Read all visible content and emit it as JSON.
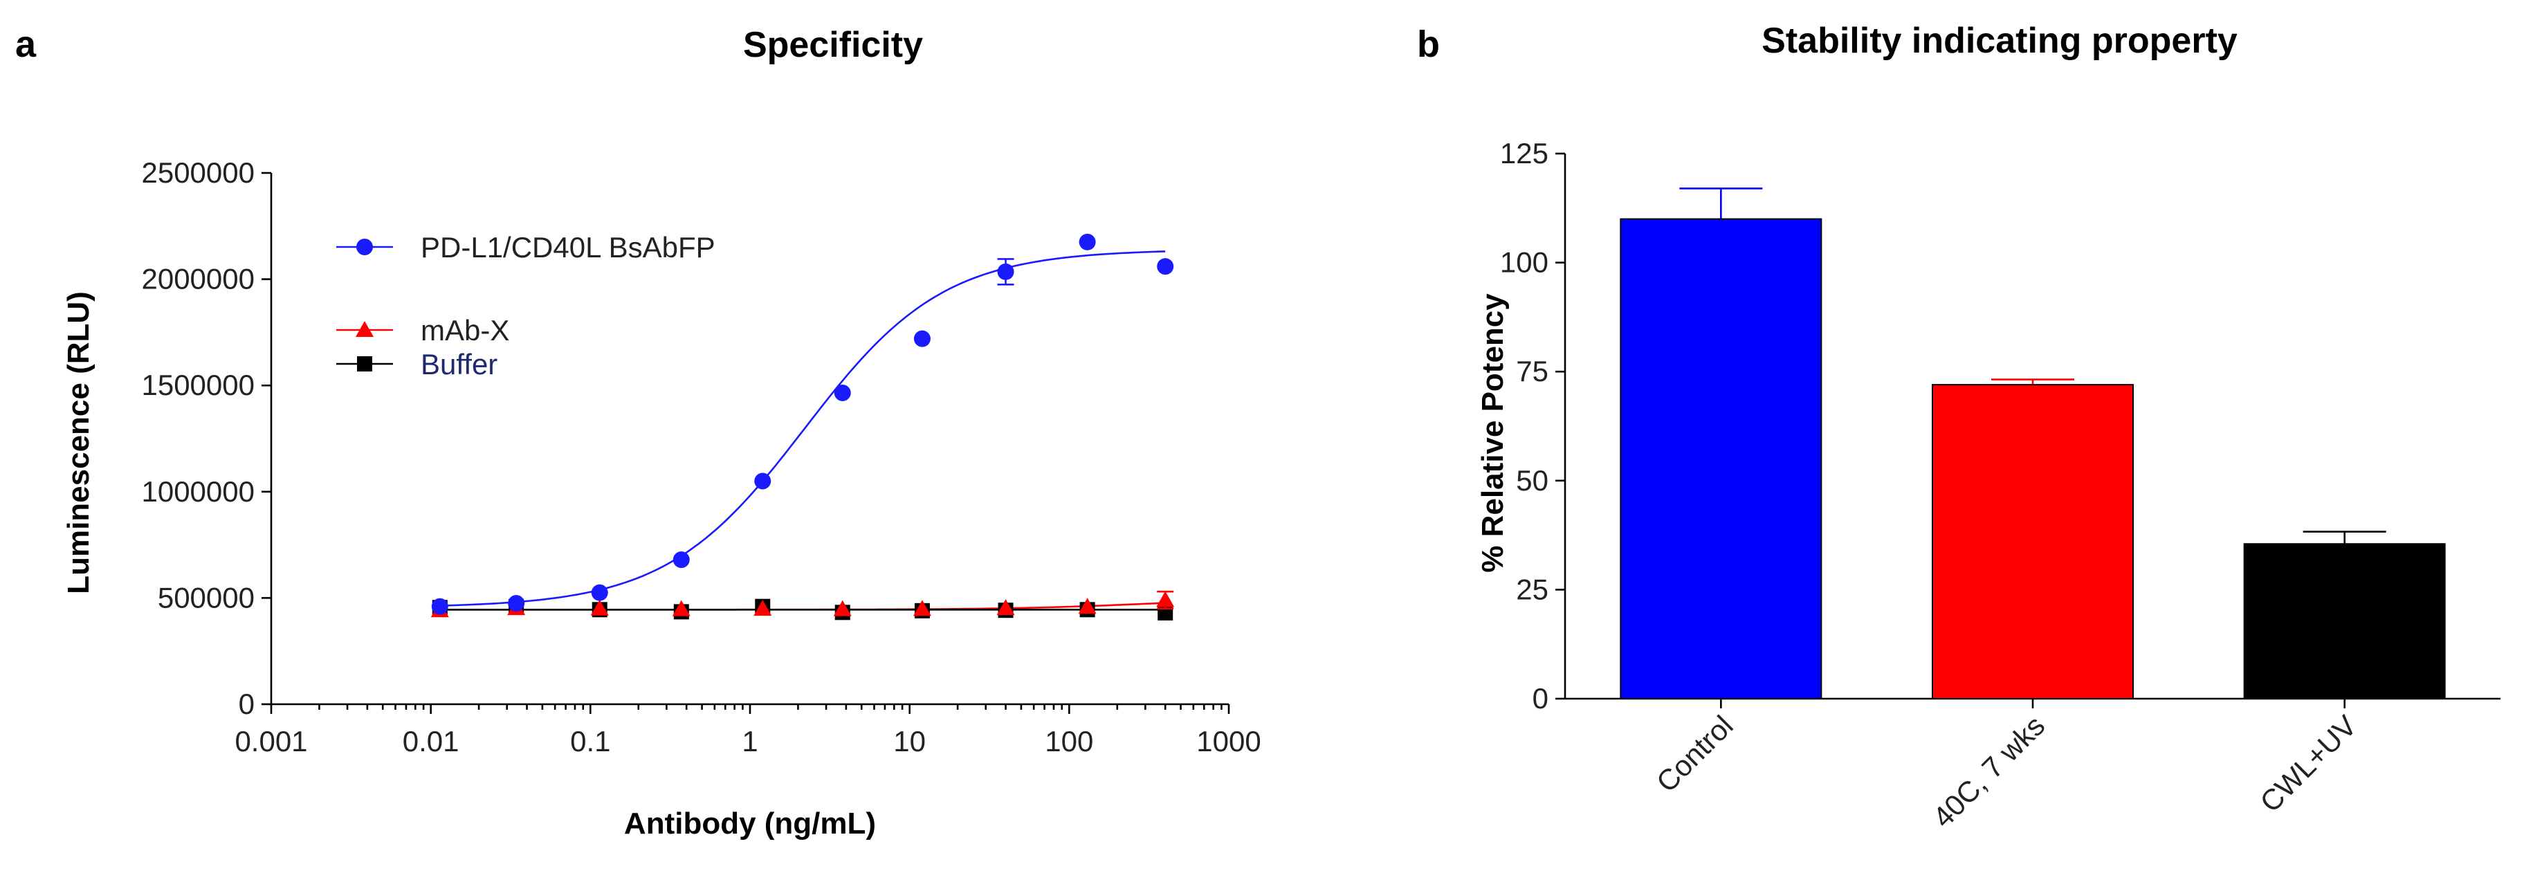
{
  "panels": {
    "a": {
      "letter": "a",
      "title": "Specificity"
    },
    "b": {
      "letter": "b",
      "title": "Stability indicating property"
    }
  },
  "chart_data": [
    {
      "type": "scatter",
      "title": "Specificity",
      "xlabel": "Antibody (ng/mL)",
      "ylabel": "Luminescence (RLU)",
      "x_scale": "log",
      "xlim": [
        0.001,
        1000
      ],
      "ylim": [
        0,
        2500000
      ],
      "x_ticks": [
        {
          "value": 0.001,
          "label": "0.001"
        },
        {
          "value": 0.01,
          "label": "0.01"
        },
        {
          "value": 0.1,
          "label": "0.1"
        },
        {
          "value": 1,
          "label": "1"
        },
        {
          "value": 10,
          "label": "10"
        },
        {
          "value": 100,
          "label": "100"
        },
        {
          "value": 1000,
          "label": "1000"
        }
      ],
      "y_ticks": [
        {
          "value": 0,
          "label": "0"
        },
        {
          "value": 500000,
          "label": "500000"
        },
        {
          "value": 1000000,
          "label": "1000000"
        },
        {
          "value": 1500000,
          "label": "1500000"
        },
        {
          "value": 2000000,
          "label": "2000000"
        },
        {
          "value": 2500000,
          "label": "2500000"
        }
      ],
      "grid": false,
      "legend_position": "top-left",
      "x": [
        0.0114,
        0.0343,
        0.1143,
        0.3714,
        1.2,
        3.8,
        12,
        40,
        130,
        400
      ],
      "series": [
        {
          "name": "PD-L1/CD40L BsAbFP",
          "color": "#1a1aff",
          "marker": "circle",
          "y": [
            460000,
            475000,
            525000,
            680000,
            1050000,
            1465000,
            1720000,
            2035000,
            2175000,
            2060000
          ],
          "err": [
            0,
            0,
            0,
            0,
            0,
            0,
            0,
            60000,
            0,
            0
          ],
          "fit": {
            "bottom": 455000,
            "top": 2140000,
            "ec50": 2.2,
            "hill": 1.0
          }
        },
        {
          "name": "mAb-X",
          "color": "#ff0000",
          "marker": "triangle",
          "y": [
            442000,
            452000,
            450000,
            447000,
            449000,
            447000,
            448000,
            452000,
            458000,
            490000
          ],
          "err": [
            0,
            0,
            0,
            0,
            0,
            0,
            0,
            0,
            0,
            40000
          ],
          "fit": {
            "bottom": 445000,
            "top": 500000,
            "ec50": 300,
            "hill": 1.0
          }
        },
        {
          "name": "Buffer",
          "color": "#000000",
          "label_color": "#1f2a6e",
          "marker": "square",
          "y": [
            455000,
            460000,
            445000,
            435000,
            460000,
            432000,
            440000,
            442000,
            445000,
            430000
          ],
          "err": [
            0,
            0,
            0,
            0,
            0,
            0,
            0,
            0,
            0,
            0
          ],
          "fit": {
            "bottom": 445000,
            "top": 445000,
            "ec50": 1,
            "hill": 1.0
          }
        }
      ]
    },
    {
      "type": "bar",
      "title": "Stability indicating property",
      "xlabel": "",
      "ylabel": "% Relative Potency",
      "ylim": [
        0,
        125
      ],
      "y_ticks": [
        {
          "value": 0,
          "label": "0"
        },
        {
          "value": 25,
          "label": "25"
        },
        {
          "value": 50,
          "label": "50"
        },
        {
          "value": 75,
          "label": "75"
        },
        {
          "value": 100,
          "label": "100"
        },
        {
          "value": 125,
          "label": "125"
        }
      ],
      "grid": false,
      "categories": [
        "Control",
        "40C, 7 wks",
        "CWL+UV"
      ],
      "values": [
        110,
        72,
        35.5
      ],
      "errors": [
        7,
        1.2,
        2.8
      ],
      "colors": [
        "#0000ff",
        "#ff0000",
        "#000000"
      ]
    }
  ]
}
